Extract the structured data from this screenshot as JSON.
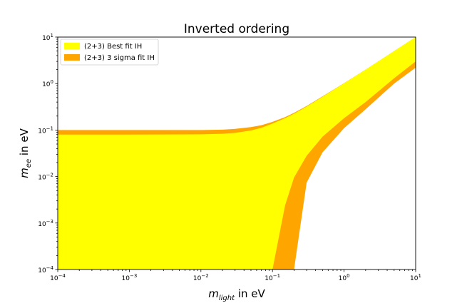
{
  "chart_data": {
    "type": "area",
    "title": "Inverted ordering",
    "xlabel": {
      "symbol": "m",
      "subscript": "light",
      "suffix": " in eV"
    },
    "ylabel": {
      "symbol": "m",
      "subscript": "ee",
      "suffix": " in eV"
    },
    "xscale": "log",
    "yscale": "log",
    "xlim": [
      0.0001,
      10
    ],
    "ylim": [
      0.0001,
      10
    ],
    "x_ticks": [
      {
        "value": 0.0001,
        "base": "10",
        "exp": "−4"
      },
      {
        "value": 0.001,
        "base": "10",
        "exp": "−3"
      },
      {
        "value": 0.01,
        "base": "10",
        "exp": "−2"
      },
      {
        "value": 0.1,
        "base": "10",
        "exp": "−1"
      },
      {
        "value": 1,
        "base": "10",
        "exp": "0"
      },
      {
        "value": 10,
        "base": "10",
        "exp": "1"
      }
    ],
    "y_ticks": [
      {
        "value": 0.0001,
        "base": "10",
        "exp": "−4"
      },
      {
        "value": 0.001,
        "base": "10",
        "exp": "−3"
      },
      {
        "value": 0.01,
        "base": "10",
        "exp": "−2"
      },
      {
        "value": 0.1,
        "base": "10",
        "exp": "−1"
      },
      {
        "value": 1,
        "base": "10",
        "exp": "0"
      },
      {
        "value": 10,
        "base": "10",
        "exp": "1"
      }
    ],
    "grid": false,
    "legend_position": "top-left",
    "series": [
      {
        "name": "(2+3) 3 sigma fit IH",
        "color": "#ffa500",
        "x": [
          0.0001,
          0.001,
          0.01,
          0.02,
          0.03,
          0.05,
          0.07,
          0.1,
          0.15,
          0.2,
          0.3,
          0.5,
          1,
          2,
          5,
          10
        ],
        "upper": [
          0.1,
          0.1,
          0.1,
          0.102,
          0.106,
          0.116,
          0.127,
          0.15,
          0.19,
          0.235,
          0.33,
          0.53,
          1.02,
          2.0,
          5.0,
          10
        ],
        "lower": [
          0.0001,
          0.0001,
          0.0001,
          0.0001,
          0.0001,
          0.0001,
          0.0001,
          0.0001,
          0.0001,
          0.0001,
          0.0074,
          0.033,
          0.11,
          0.28,
          1.0,
          2.2
        ]
      },
      {
        "name": "(2+3) Best fit IH",
        "color": "#ffff00",
        "x": [
          0.0001,
          0.001,
          0.01,
          0.02,
          0.03,
          0.05,
          0.07,
          0.1,
          0.15,
          0.2,
          0.3,
          0.5,
          1,
          2,
          5,
          10
        ],
        "upper": [
          0.08,
          0.08,
          0.081,
          0.083,
          0.087,
          0.098,
          0.112,
          0.138,
          0.18,
          0.225,
          0.32,
          0.52,
          1.01,
          2.0,
          5.0,
          10
        ],
        "lower": [
          0.0001,
          0.0001,
          0.0001,
          0.0001,
          0.0001,
          0.0001,
          0.0001,
          0.0001,
          0.0024,
          0.0095,
          0.028,
          0.072,
          0.18,
          0.4,
          1.3,
          3.0
        ]
      }
    ],
    "legend_order": [
      "(2+3) Best fit IH",
      "(2+3) 3 sigma fit IH"
    ]
  }
}
